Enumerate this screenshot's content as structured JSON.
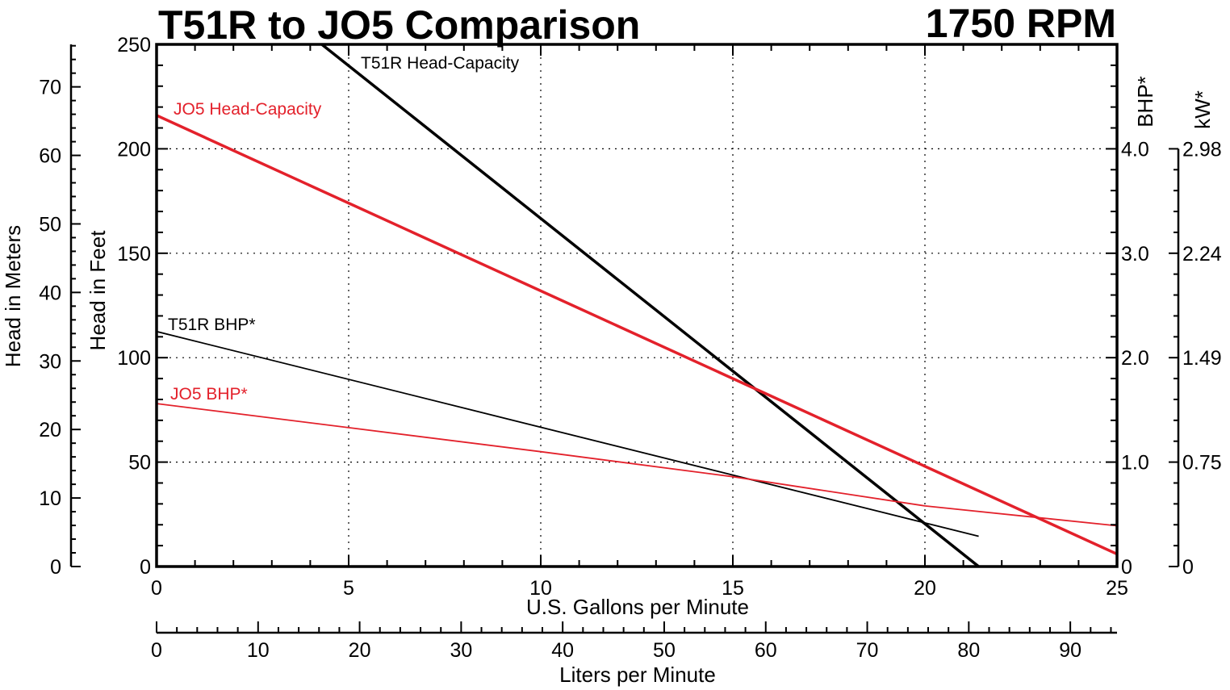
{
  "chart_data": {
    "type": "line",
    "title": "T51R to JO5 Comparison",
    "title_right": "1750 RPM",
    "xlabel": "U.S. Gallons per Minute",
    "xlabel_secondary": "Liters per Minute",
    "ylabel_feet": "Head in Feet",
    "ylabel_meters": "Head in Meters",
    "ylabel_bhp": "BHP*",
    "ylabel_kw": "kW*",
    "xlim": [
      0,
      25
    ],
    "ylim_feet": [
      0,
      250
    ],
    "ylim_meters": [
      0,
      76.2
    ],
    "ylim_bhp": [
      0,
      5
    ],
    "ylim_lpm": [
      0,
      94.6
    ],
    "x_ticks": [
      "0",
      "5",
      "10",
      "15",
      "20",
      "25"
    ],
    "y_ticks_feet": [
      "0",
      "50",
      "100",
      "150",
      "200",
      "250"
    ],
    "y_ticks_meters": [
      "0",
      "10",
      "20",
      "30",
      "40",
      "50",
      "60",
      "70"
    ],
    "y_ticks_bhp": [
      "0",
      "1.0",
      "2.0",
      "3.0",
      "4.0"
    ],
    "y_ticks_kw": [
      "0",
      "0.75",
      "1.49",
      "2.24",
      "2.98"
    ],
    "lpm_ticks": [
      "0",
      "10",
      "20",
      "30",
      "40",
      "50",
      "60",
      "70",
      "80",
      "90"
    ],
    "grid": true,
    "series": [
      {
        "name": "T51R Head-Capacity",
        "axis": "feet",
        "color": "#000000",
        "width": 3.5,
        "x": [
          4.3,
          21.4
        ],
        "y": [
          250,
          0
        ]
      },
      {
        "name": "JO5 Head-Capacity",
        "axis": "feet",
        "color": "#e3212b",
        "width": 3.5,
        "x": [
          0,
          25
        ],
        "y": [
          216,
          6
        ]
      },
      {
        "name": "T51R BHP*",
        "axis": "bhp",
        "color": "#000000",
        "width": 1.8,
        "x": [
          0,
          21.4
        ],
        "y": [
          2.25,
          0.29
        ]
      },
      {
        "name": "JO5 BHP*",
        "axis": "bhp",
        "color": "#e3212b",
        "width": 1.8,
        "x": [
          0,
          5,
          10,
          15,
          20,
          25
        ],
        "y": [
          1.56,
          1.33,
          1.1,
          0.86,
          0.58,
          0.39
        ]
      }
    ]
  }
}
